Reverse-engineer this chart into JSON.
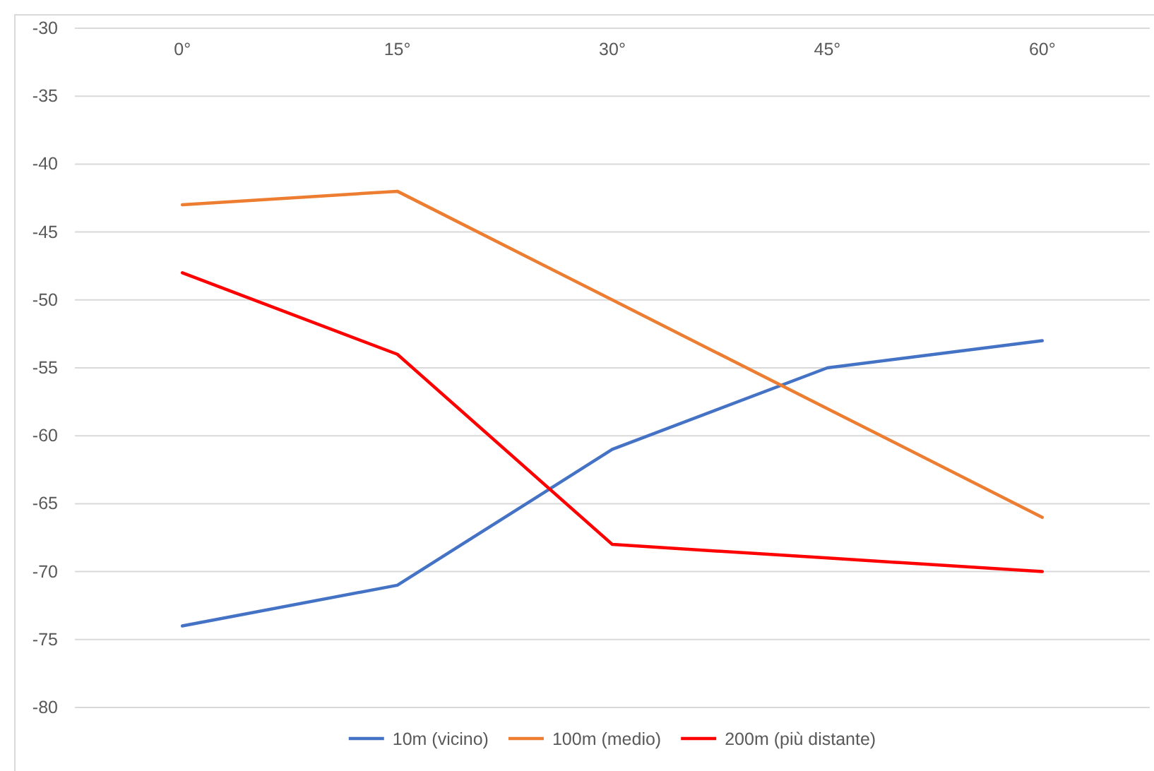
{
  "chart_data": {
    "type": "line",
    "categories": [
      "0°",
      "15°",
      "30°",
      "45°",
      "60°"
    ],
    "series": [
      {
        "name": "10m (vicino)",
        "color": "#4472c4",
        "values": [
          -74,
          -71,
          -61,
          -55,
          -53
        ]
      },
      {
        "name": "100m (medio)",
        "color": "#ed7d31",
        "values": [
          -43,
          -42,
          -50,
          -58,
          -66
        ]
      },
      {
        "name": "200m (più distante)",
        "color": "#ff0000",
        "values": [
          -48,
          -54,
          -68,
          -69,
          -70
        ]
      }
    ],
    "ylim": [
      -80,
      -30
    ],
    "yticks": [
      -80,
      -75,
      -70,
      -65,
      -60,
      -55,
      -50,
      -45,
      -40,
      -35,
      -30
    ],
    "grid": "y",
    "legend": "bottom",
    "marker": "none",
    "line_style": "solid"
  }
}
